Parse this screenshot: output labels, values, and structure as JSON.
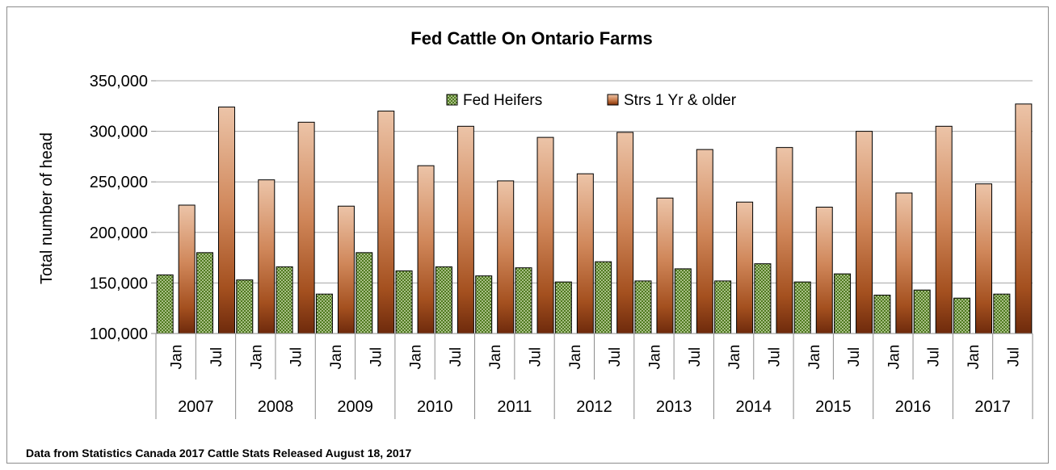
{
  "chart_data": {
    "type": "bar",
    "title": "Fed Cattle On Ontario Farms",
    "xlabel": "",
    "ylabel": "Total number of head",
    "ylim": [
      100000,
      350000
    ],
    "yticks": [
      "100,000",
      "150,000",
      "200,000",
      "250,000",
      "300,000",
      "350,000"
    ],
    "ytick_values": [
      100000,
      150000,
      200000,
      250000,
      300000,
      350000
    ],
    "grid": true,
    "legend_position": "top",
    "years": [
      "2007",
      "2008",
      "2009",
      "2010",
      "2011",
      "2012",
      "2013",
      "2014",
      "2015",
      "2016",
      "2017"
    ],
    "months": [
      "Jan",
      "Jul"
    ],
    "categories": [
      "Jan 2007",
      "Jul 2007",
      "Jan 2008",
      "Jul 2008",
      "Jan 2009",
      "Jul 2009",
      "Jan 2010",
      "Jul 2010",
      "Jan 2011",
      "Jul 2011",
      "Jan 2012",
      "Jul 2012",
      "Jan 2013",
      "Jul 2013",
      "Jan 2014",
      "Jul 2014",
      "Jan 2015",
      "Jul 2015",
      "Jan 2016",
      "Jul 2016",
      "Jan 2017",
      "Jul 2017"
    ],
    "series": [
      {
        "name": "Fed Heifers",
        "color": "#4f7a1f",
        "values": [
          158000,
          180000,
          153000,
          166000,
          139000,
          180000,
          162000,
          166000,
          157000,
          165000,
          151000,
          171000,
          152000,
          164000,
          152000,
          169000,
          151000,
          159000,
          138000,
          143000,
          135000,
          139000
        ]
      },
      {
        "name": "Strs 1 Yr & older",
        "color": "#b8622d",
        "values": [
          227000,
          324000,
          252000,
          309000,
          226000,
          320000,
          266000,
          305000,
          251000,
          294000,
          258000,
          299000,
          234000,
          282000,
          230000,
          284000,
          225000,
          300000,
          239000,
          305000,
          248000,
          327000
        ]
      }
    ]
  },
  "footnote": "Data from Statistics Canada 2017 Cattle Stats  Released August 18, 2017"
}
